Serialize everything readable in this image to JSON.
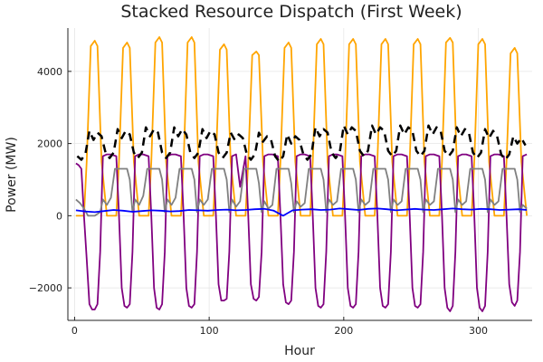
{
  "chart_data": {
    "type": "line",
    "title": "Stacked Resource Dispatch (First Week)",
    "xlabel": "Hour",
    "ylabel": "Power (MW)",
    "xlim": [
      -5,
      340
    ],
    "ylim": [
      -2900,
      5200
    ],
    "x_ticks": [
      0,
      100,
      200,
      300
    ],
    "y_ticks": [
      -2000,
      0,
      2000,
      4000
    ],
    "y_tick_labels": [
      "−2000",
      "0",
      "2000",
      "4000"
    ],
    "grid": true,
    "legend": "none",
    "series": [
      {
        "color": "#FFA500",
        "line_style": "solid",
        "description": "daily peaked series, ~0 at night, peaks ~4500-5000 MW midday",
        "x": [
          1,
          4,
          7,
          9,
          12,
          15,
          17,
          20,
          24,
          28,
          31,
          33,
          36,
          39,
          41,
          44,
          48,
          52,
          55,
          57,
          60,
          63,
          65,
          68,
          72,
          76,
          79,
          81,
          84,
          87,
          89,
          92,
          96,
          100,
          103,
          105,
          108,
          111,
          113,
          116,
          120,
          124,
          127,
          129,
          132,
          135,
          137,
          140,
          144,
          148,
          151,
          153,
          156,
          159,
          161,
          164,
          168,
          172,
          175,
          177,
          180,
          183,
          185,
          188,
          192,
          196,
          199,
          201,
          204,
          207,
          209,
          212,
          216,
          220,
          223,
          225,
          228,
          231,
          233,
          236,
          240,
          244,
          247,
          249,
          252,
          255,
          257,
          260,
          264,
          268,
          271,
          273,
          276,
          279,
          281,
          284,
          288,
          292,
          295,
          297,
          300,
          303,
          305,
          308,
          312,
          316,
          319,
          321,
          324,
          327,
          329,
          332,
          336
        ],
        "y": [
          0,
          0,
          0,
          1500,
          4700,
          4850,
          4700,
          1500,
          0,
          0,
          0,
          1500,
          4650,
          4800,
          4650,
          1500,
          0,
          0,
          0,
          1500,
          4800,
          4950,
          4800,
          1500,
          0,
          0,
          0,
          1500,
          4800,
          4950,
          4800,
          1500,
          0,
          0,
          0,
          1500,
          4600,
          4750,
          4600,
          1500,
          0,
          0,
          0,
          1500,
          4450,
          4550,
          4450,
          1500,
          0,
          0,
          0,
          1500,
          4650,
          4800,
          4650,
          1500,
          0,
          0,
          0,
          1500,
          4750,
          4900,
          4750,
          1500,
          0,
          0,
          0,
          1500,
          4750,
          4900,
          4750,
          1500,
          0,
          0,
          0,
          1500,
          4750,
          4900,
          4750,
          1500,
          0,
          0,
          0,
          1500,
          4750,
          4900,
          4750,
          1500,
          0,
          0,
          0,
          1500,
          4800,
          4930,
          4800,
          1500,
          0,
          0,
          0,
          1500,
          4750,
          4900,
          4750,
          1500,
          0,
          0,
          0,
          1500,
          4500,
          4650,
          4500,
          1500,
          0
        ]
      },
      {
        "color": "#800080",
        "line_style": "solid",
        "description": "storage-like series: ~1650-1700 MW at night, deep negative ~-2600 MW midday",
        "x": [
          1,
          3,
          5,
          7,
          9,
          11,
          13,
          15,
          17,
          19,
          21,
          24,
          27,
          31,
          33,
          35,
          37,
          39,
          41,
          43,
          45,
          48,
          51,
          55,
          57,
          59,
          61,
          63,
          65,
          67,
          69,
          72,
          75,
          79,
          81,
          83,
          85,
          87,
          89,
          91,
          93,
          96,
          99,
          103,
          105,
          107,
          109,
          111,
          113,
          115,
          117,
          120,
          123,
          127,
          129,
          131,
          133,
          135,
          137,
          139,
          141,
          144,
          147,
          151,
          153,
          155,
          157,
          159,
          161,
          163,
          165,
          168,
          171,
          175,
          177,
          179,
          181,
          183,
          185,
          187,
          189,
          192,
          195,
          199,
          201,
          203,
          205,
          207,
          209,
          211,
          213,
          216,
          219,
          223,
          225,
          227,
          229,
          231,
          233,
          235,
          237,
          240,
          243,
          247,
          249,
          251,
          253,
          255,
          257,
          259,
          261,
          264,
          267,
          271,
          273,
          275,
          277,
          279,
          281,
          283,
          285,
          288,
          291,
          295,
          297,
          299,
          301,
          303,
          305,
          307,
          309,
          312,
          315,
          319,
          321,
          323,
          325,
          327,
          329,
          331,
          333,
          336
        ],
        "y": [
          1450,
          1400,
          1300,
          0,
          -1200,
          -2450,
          -2600,
          -2600,
          -2450,
          -1000,
          1650,
          1700,
          1700,
          1650,
          0,
          -2000,
          -2500,
          -2550,
          -2450,
          -1000,
          1650,
          1700,
          1700,
          1650,
          0,
          -2000,
          -2550,
          -2600,
          -2450,
          -1000,
          1650,
          1700,
          1700,
          1650,
          0,
          -2000,
          -2500,
          -2550,
          -2450,
          -1000,
          1650,
          1700,
          1700,
          1650,
          0,
          -1900,
          -2350,
          -2350,
          -2300,
          -1000,
          1650,
          1700,
          800,
          1650,
          0,
          -1900,
          -2300,
          -2350,
          -2250,
          -1000,
          1650,
          1700,
          1700,
          1650,
          0,
          -1900,
          -2400,
          -2450,
          -2350,
          -1000,
          1650,
          1700,
          1700,
          1650,
          0,
          -2000,
          -2500,
          -2550,
          -2450,
          -1000,
          1650,
          1700,
          1700,
          1650,
          0,
          -2000,
          -2500,
          -2550,
          -2450,
          -1000,
          1650,
          1700,
          1700,
          1650,
          0,
          -2000,
          -2500,
          -2550,
          -2450,
          -1000,
          1650,
          1700,
          1700,
          1650,
          0,
          -2000,
          -2500,
          -2550,
          -2450,
          -1000,
          1650,
          1700,
          1700,
          1650,
          0,
          -2000,
          -2550,
          -2650,
          -2500,
          -1000,
          1650,
          1700,
          1700,
          1650,
          0,
          -2000,
          -2550,
          -2650,
          -2500,
          -1000,
          1650,
          1700,
          1700,
          1650,
          0,
          -1900,
          -2400,
          -2500,
          -2350,
          -1000,
          1650,
          1700
        ]
      },
      {
        "color": "#000000",
        "line_style": "dashed",
        "description": "load/demand series oscillating ~1500-2550 MW",
        "x": [
          2,
          5,
          8,
          11,
          14,
          17,
          20,
          23,
          26,
          29,
          32,
          35,
          38,
          41,
          44,
          47,
          50,
          53,
          56,
          59,
          62,
          65,
          68,
          71,
          74,
          77,
          80,
          83,
          86,
          89,
          92,
          95,
          98,
          101,
          104,
          107,
          110,
          113,
          116,
          119,
          122,
          125,
          128,
          131,
          134,
          137,
          140,
          143,
          146,
          149,
          152,
          155,
          158,
          161,
          164,
          167,
          170,
          173,
          176,
          179,
          182,
          185,
          188,
          191,
          194,
          197,
          200,
          203,
          206,
          209,
          212,
          215,
          218,
          221,
          224,
          227,
          230,
          233,
          236,
          239,
          242,
          245,
          248,
          251,
          254,
          257,
          260,
          263,
          266,
          269,
          272,
          275,
          278,
          281,
          284,
          287,
          290,
          293,
          296,
          299,
          302,
          305,
          308,
          311,
          314,
          317,
          320,
          323,
          326,
          329,
          332,
          335
        ],
        "y": [
          1650,
          1550,
          1700,
          2350,
          2100,
          2300,
          2200,
          1750,
          1600,
          1750,
          2400,
          2150,
          2350,
          2250,
          1750,
          1600,
          1750,
          2450,
          2200,
          2400,
          2300,
          1750,
          1600,
          1750,
          2450,
          2200,
          2400,
          2250,
          1750,
          1600,
          1750,
          2400,
          2150,
          2350,
          2250,
          1750,
          1600,
          1750,
          2300,
          2100,
          2250,
          2150,
          1700,
          1550,
          1700,
          2300,
          2050,
          2200,
          2100,
          1650,
          1500,
          1650,
          2250,
          2000,
          2200,
          2100,
          1700,
          1550,
          1700,
          2450,
          2200,
          2400,
          2300,
          1750,
          1600,
          1750,
          2500,
          2250,
          2450,
          2350,
          1800,
          1650,
          1800,
          2500,
          2250,
          2450,
          2350,
          1800,
          1650,
          1800,
          2500,
          2250,
          2450,
          2350,
          1800,
          1650,
          1800,
          2500,
          2250,
          2450,
          2350,
          1800,
          1650,
          1800,
          2450,
          2200,
          2400,
          2300,
          1750,
          1600,
          1750,
          2400,
          2150,
          2350,
          2200,
          1700,
          1550,
          1700,
          2200,
          2000,
          2150,
          1950
        ]
      },
      {
        "color": "#808080",
        "line_style": "solid",
        "description": "gray series: ~0-500 MW mostly, ~1300 MW plateaus midday",
        "x": [
          1,
          4,
          7,
          10,
          13,
          15,
          17,
          19,
          21,
          24,
          27,
          30,
          33,
          35,
          37,
          39,
          41,
          43,
          45,
          48,
          51,
          54,
          57,
          59,
          61,
          63,
          65,
          67,
          69,
          72,
          75,
          78,
          81,
          83,
          85,
          87,
          89,
          91,
          93,
          96,
          99,
          102,
          105,
          107,
          109,
          111,
          113,
          115,
          117,
          120,
          123,
          126,
          129,
          131,
          133,
          135,
          137,
          139,
          141,
          144,
          147,
          150,
          153,
          155,
          157,
          159,
          161,
          163,
          165,
          168,
          171,
          174,
          177,
          179,
          181,
          183,
          185,
          187,
          189,
          192,
          195,
          198,
          201,
          203,
          205,
          207,
          209,
          211,
          213,
          216,
          219,
          222,
          225,
          227,
          229,
          231,
          233,
          235,
          237,
          240,
          243,
          246,
          249,
          251,
          253,
          255,
          257,
          259,
          261,
          264,
          267,
          270,
          273,
          275,
          277,
          279,
          281,
          283,
          285,
          288,
          291,
          294,
          297,
          299,
          301,
          303,
          305,
          307,
          309,
          312,
          315,
          318,
          321,
          323,
          325,
          327,
          329,
          331,
          333,
          336
        ],
        "y": [
          450,
          350,
          200,
          0,
          0,
          0,
          50,
          100,
          450,
          300,
          500,
          1300,
          1300,
          1300,
          1300,
          1300,
          1000,
          100,
          450,
          300,
          550,
          1300,
          1300,
          1300,
          1300,
          1300,
          1000,
          100,
          450,
          300,
          500,
          1300,
          1300,
          1300,
          1300,
          1300,
          1000,
          100,
          450,
          300,
          450,
          1300,
          1300,
          1300,
          1300,
          1300,
          1000,
          100,
          450,
          250,
          400,
          1300,
          1300,
          1300,
          1300,
          1300,
          900,
          100,
          400,
          200,
          300,
          1300,
          1300,
          1300,
          1300,
          1300,
          900,
          100,
          400,
          250,
          350,
          1300,
          1300,
          1300,
          1300,
          1300,
          1000,
          100,
          450,
          300,
          400,
          1300,
          1300,
          1300,
          1300,
          1300,
          1000,
          100,
          450,
          300,
          400,
          1300,
          1300,
          1300,
          1300,
          1300,
          1000,
          100,
          450,
          300,
          400,
          1300,
          1300,
          1300,
          1300,
          1300,
          1000,
          100,
          450,
          300,
          400,
          1300,
          1300,
          1300,
          1300,
          1300,
          1000,
          100,
          450,
          300,
          400,
          1300,
          1300,
          1300,
          1300,
          1300,
          1000,
          100,
          450,
          300,
          400,
          1300,
          1300,
          1300,
          1300,
          1300,
          1000,
          100,
          300,
          200
        ]
      },
      {
        "color": "#0000FF",
        "line_style": "solid",
        "description": "blue series fluctuating ~80-220 MW",
        "x": [
          1,
          8,
          15,
          22,
          29,
          36,
          43,
          50,
          57,
          64,
          71,
          78,
          85,
          92,
          99,
          106,
          113,
          120,
          127,
          134,
          141,
          148,
          155,
          162,
          169,
          176,
          183,
          190,
          197,
          204,
          211,
          218,
          225,
          232,
          239,
          246,
          253,
          260,
          267,
          274,
          281,
          288,
          295,
          302,
          309,
          316,
          323,
          330,
          336
        ],
        "y": [
          150,
          120,
          100,
          130,
          160,
          140,
          110,
          130,
          150,
          140,
          120,
          130,
          160,
          150,
          140,
          160,
          170,
          150,
          160,
          180,
          190,
          140,
          0,
          150,
          170,
          180,
          160,
          170,
          200,
          180,
          160,
          190,
          200,
          180,
          150,
          170,
          190,
          170,
          160,
          180,
          200,
          180,
          170,
          190,
          180,
          160,
          170,
          180,
          160
        ]
      }
    ]
  }
}
